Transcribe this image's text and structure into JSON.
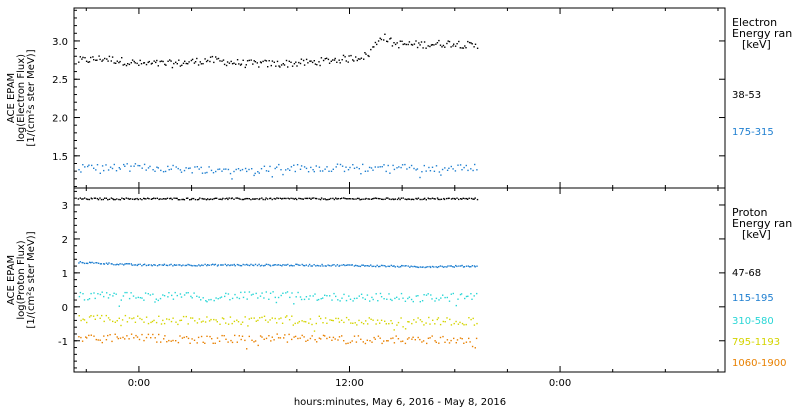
{
  "chart_data": [
    {
      "type": "scatter",
      "panel": "electron",
      "ylabel_lines": [
        "ACE EPAM",
        "log(Electron Flux)",
        "[1/(cm²s ster MeV)]"
      ],
      "ylim": [
        1.08,
        3.43
      ],
      "yticks": [
        1.5,
        2.0,
        2.5,
        3.0
      ],
      "ytick_labels": [
        "1.5",
        "2.0",
        "2.5",
        "3.0"
      ],
      "legend_title": [
        "Electron",
        "Energy ran",
        "[keV]"
      ],
      "series": [
        {
          "name": "38-53",
          "color": "#000000",
          "points": [
            [
              -3.5,
              2.75
            ],
            [
              -2,
              2.78
            ],
            [
              0,
              2.71
            ],
            [
              2,
              2.71
            ],
            [
              4,
              2.76
            ],
            [
              6,
              2.71
            ],
            [
              8,
              2.71
            ],
            [
              10,
              2.73
            ],
            [
              11,
              2.76
            ],
            [
              12,
              2.78
            ],
            [
              13,
              2.82
            ],
            [
              13.8,
              3.08
            ],
            [
              14.5,
              2.97
            ],
            [
              16,
              2.96
            ],
            [
              18,
              2.98
            ],
            [
              19.3,
              2.93
            ]
          ]
        },
        {
          "name": "175-315",
          "color": "#1f7fd0",
          "points": [
            [
              -3.5,
              1.36
            ],
            [
              -2,
              1.35
            ],
            [
              0,
              1.36
            ],
            [
              2,
              1.34
            ],
            [
              4,
              1.33
            ],
            [
              6,
              1.32
            ],
            [
              8,
              1.35
            ],
            [
              10,
              1.35
            ],
            [
              12,
              1.35
            ],
            [
              14,
              1.35
            ],
            [
              16,
              1.35
            ],
            [
              18,
              1.34
            ],
            [
              19.3,
              1.37
            ]
          ]
        }
      ]
    },
    {
      "type": "scatter",
      "panel": "proton",
      "ylabel_lines": [
        "ACE EPAM",
        "log(Proton Flux)",
        "[1/(cm²s ster MeV)]"
      ],
      "ylim": [
        -1.92,
        3.5
      ],
      "yticks": [
        -1,
        0,
        1,
        2,
        3
      ],
      "ytick_labels": [
        "-1",
        "0",
        "1",
        "2",
        "3"
      ],
      "legend_title": [
        "Proton",
        "Energy ran",
        "[keV]"
      ],
      "series": [
        {
          "name": "47-68",
          "color": "#000000",
          "points": [
            [
              -3.5,
              3.2
            ],
            [
              0,
              3.2
            ],
            [
              6,
              3.2
            ],
            [
              12,
              3.2
            ],
            [
              19.3,
              3.2
            ]
          ]
        },
        {
          "name": "115-195",
          "color": "#1f7fd0",
          "points": [
            [
              -3.5,
              1.33
            ],
            [
              0,
              1.25
            ],
            [
              4,
              1.25
            ],
            [
              8,
              1.25
            ],
            [
              12,
              1.24
            ],
            [
              16,
              1.2
            ],
            [
              19.3,
              1.22
            ]
          ]
        },
        {
          "name": "310-580",
          "color": "#29d6d6",
          "points": [
            [
              -3.5,
              0.33
            ],
            [
              0,
              0.33
            ],
            [
              4,
              0.32
            ],
            [
              8,
              0.35
            ],
            [
              12,
              0.3
            ],
            [
              16,
              0.3
            ],
            [
              19.3,
              0.3
            ]
          ]
        },
        {
          "name": "795-1193",
          "color": "#d4d400",
          "points": [
            [
              -3.5,
              -0.35
            ],
            [
              0,
              -0.35
            ],
            [
              4,
              -0.4
            ],
            [
              8,
              -0.35
            ],
            [
              12,
              -0.4
            ],
            [
              16,
              -0.4
            ],
            [
              19.3,
              -0.4
            ]
          ]
        },
        {
          "name": "1060-1900",
          "color": "#e88000",
          "points": [
            [
              -3.5,
              -0.9
            ],
            [
              0,
              -0.9
            ],
            [
              4,
              -0.95
            ],
            [
              8,
              -0.9
            ],
            [
              12,
              -0.95
            ],
            [
              16,
              -0.95
            ],
            [
              19.3,
              -0.95
            ]
          ]
        }
      ]
    }
  ],
  "xaxis": {
    "label": "hours:minutes,  May  6, 2016 - May  8, 2016",
    "xlim": [
      -3.7,
      33.4
    ],
    "ticks": [
      0,
      12,
      24
    ],
    "tick_labels": [
      "0:00",
      "12:00",
      "0:00"
    ],
    "minor_ticks": [
      -3,
      3,
      6,
      9,
      15,
      18,
      21,
      27,
      30,
      33
    ]
  }
}
